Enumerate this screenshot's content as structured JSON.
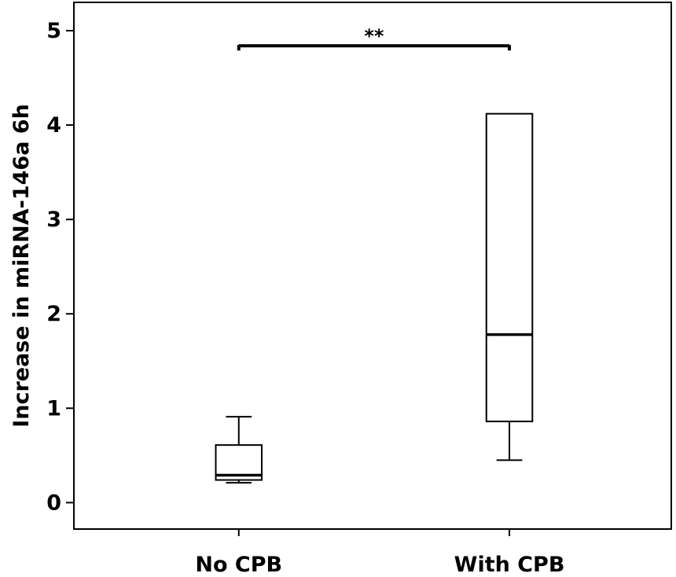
{
  "chart_data": {
    "type": "box",
    "title": "",
    "xlabel": "",
    "ylabel": "Increase in miRNA-146a 6h",
    "ylim": [
      -0.28,
      5.3
    ],
    "yticks": [
      "0",
      "1",
      "2",
      "3",
      "4",
      "5"
    ],
    "categories": [
      "No CPB",
      "With CPB"
    ],
    "boxes": [
      {
        "category": "No CPB",
        "whisker_low": 0.21,
        "q1": 0.24,
        "median": 0.29,
        "q3": 0.61,
        "whisker_high": 0.91
      },
      {
        "category": "With CPB",
        "whisker_low": 0.45,
        "q1": 0.86,
        "median": 1.78,
        "q3": 4.12,
        "whisker_high": 4.12
      }
    ],
    "significance": {
      "between": [
        "No CPB",
        "With CPB"
      ],
      "label": "**"
    },
    "grid": false,
    "legend": false
  }
}
